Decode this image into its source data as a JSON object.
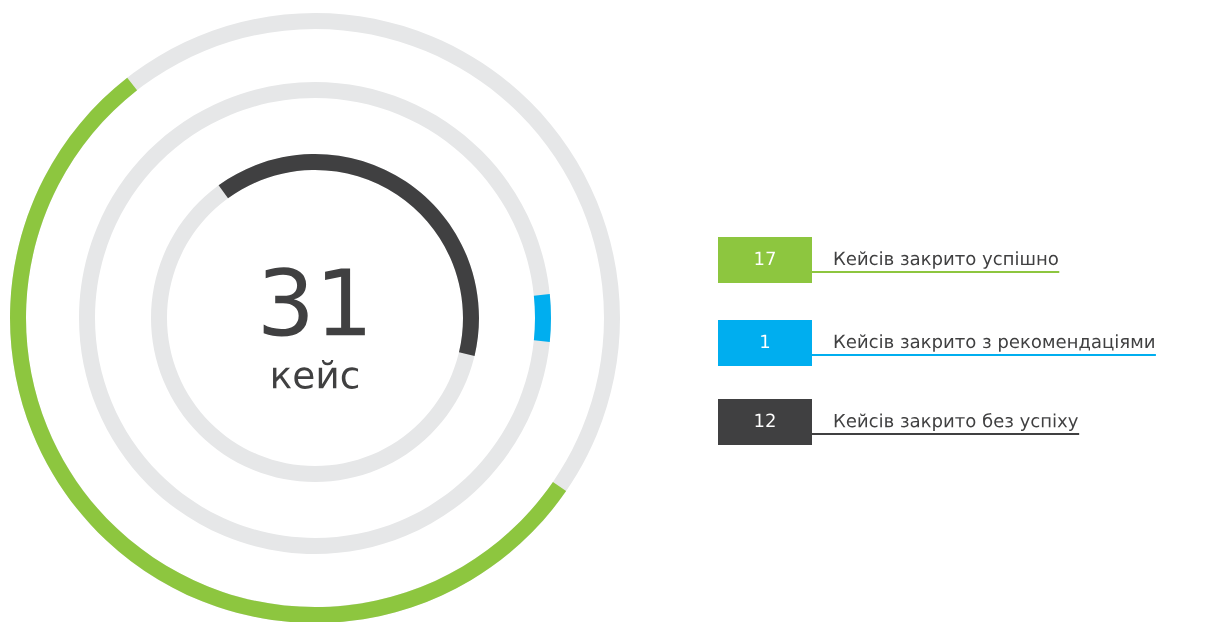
{
  "chart_data": {
    "type": "other",
    "title": "31",
    "subtitle": "кейс",
    "categories": [
      "Кейсів закрито успішно",
      "Кейсів закрито з рекомендаціями",
      "Кейсів закрито без успіху"
    ],
    "values": [
      17,
      1,
      12
    ],
    "colors": [
      "#8dc63f",
      "#00aeef",
      "#404041"
    ],
    "data_labels": true
  }
}
